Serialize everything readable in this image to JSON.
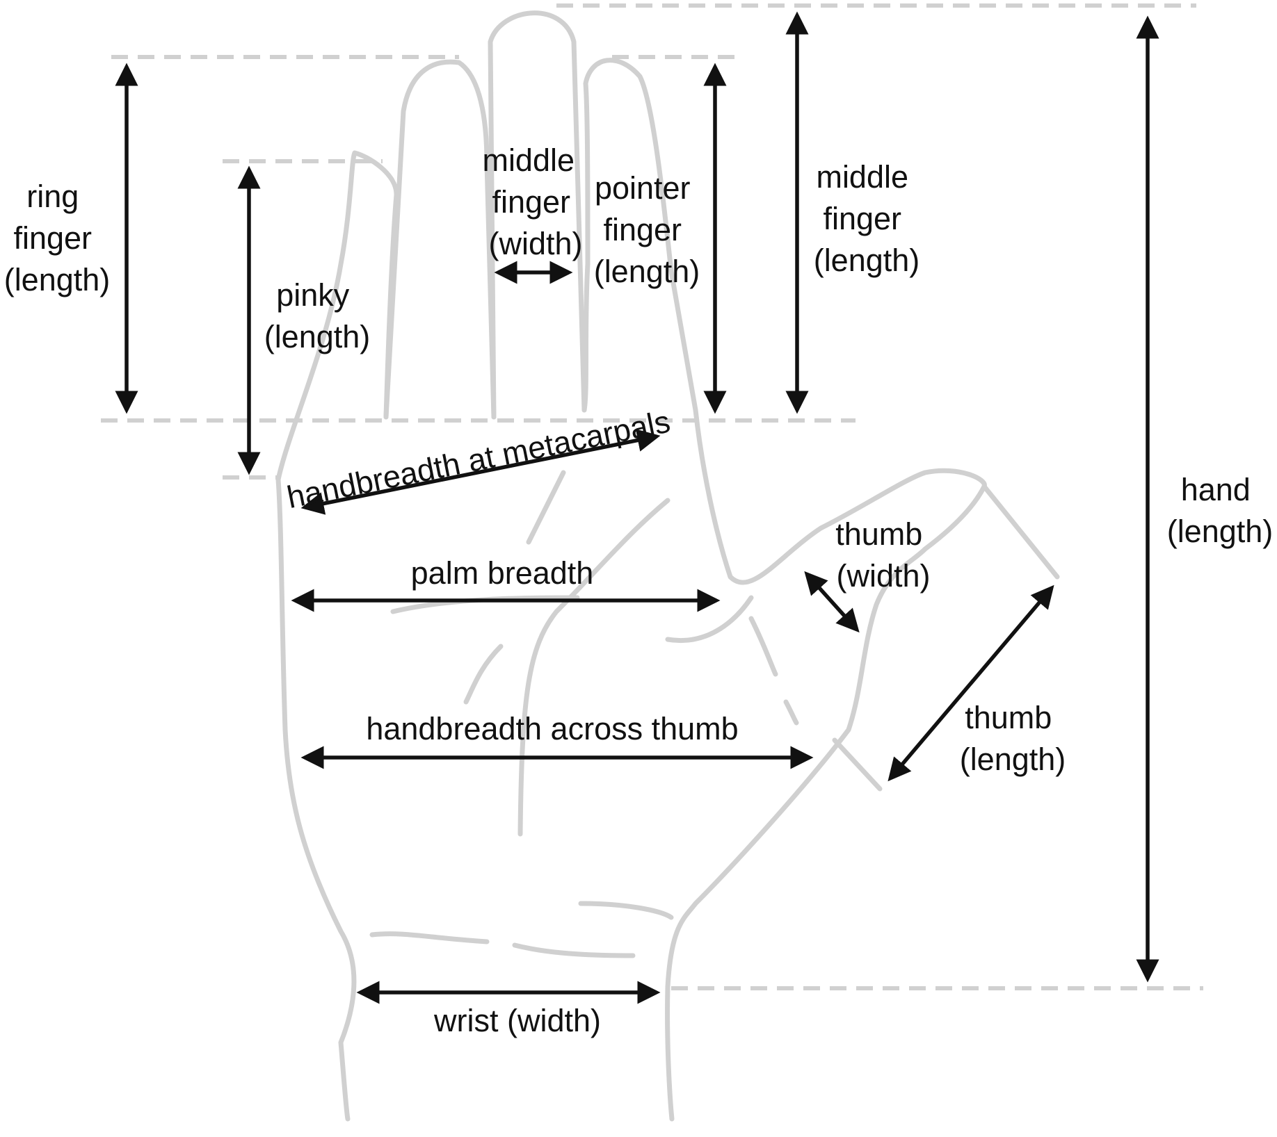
{
  "colors": {
    "outline": "#d0d0d0",
    "arrow": "#111111",
    "background": "#ffffff"
  },
  "labels": {
    "ring_finger": [
      "ring",
      "finger",
      "(length)"
    ],
    "pinky": [
      "pinky",
      "(length)"
    ],
    "middle_finger_width": [
      "middle",
      "finger",
      "(width)"
    ],
    "pointer_finger": [
      "pointer",
      "finger",
      "(length)"
    ],
    "middle_finger_length": [
      "middle",
      "finger",
      "(length)"
    ],
    "hand_length": [
      "hand",
      "(length)"
    ],
    "metacarpals": "handbreadth at metacarpals",
    "thumb_width": [
      "thumb",
      "(width)"
    ],
    "palm_breadth": "palm breadth",
    "thumb_length": [
      "thumb",
      "(length)"
    ],
    "across_thumb": "handbreadth across thumb",
    "wrist": "wrist (width)"
  }
}
